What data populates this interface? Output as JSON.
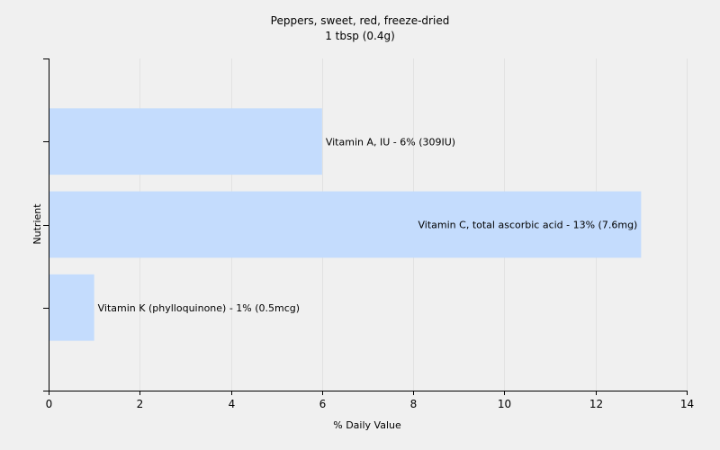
{
  "chart_data": {
    "type": "bar",
    "orientation": "horizontal",
    "title": "Peppers, sweet, red, freeze-dried",
    "subtitle": "1 tbsp (0.4g)",
    "xlabel": "% Daily Value",
    "ylabel": "Nutrient",
    "xlim": [
      0,
      14
    ],
    "x_ticks": [
      0,
      2,
      4,
      6,
      8,
      10,
      12,
      14
    ],
    "grid": "vertical",
    "bar_color": "#c4dcfd",
    "background_color": "#f0f0f0",
    "categories": [
      "Vitamin A, IU",
      "Vitamin C, total ascorbic acid",
      "Vitamin K (phylloquinone)"
    ],
    "values": [
      6,
      13,
      1
    ],
    "labels": [
      "Vitamin A, IU - 6% (309IU)",
      "Vitamin C, total ascorbic acid - 13% (7.6mg)",
      "Vitamin K (phylloquinone) - 1% (0.5mcg)"
    ],
    "label_position": [
      "outside",
      "inside-end",
      "outside"
    ]
  }
}
